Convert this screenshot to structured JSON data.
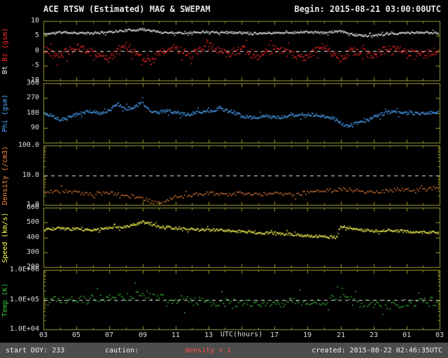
{
  "header": {
    "title": "ACE RTSW (Estimated) MAG & SWEPAM",
    "begin": "Begin: 2015-08-21 03:00:00UTC"
  },
  "footer": {
    "start_doy": "start DOY: 233",
    "caution_label": "caution:",
    "caution_value": "density < 1",
    "created": "created: 2015-08-22 02:46:35UTC"
  },
  "colors": {
    "background": "#000000",
    "frame": "#9a9a2e",
    "tick_text": "#dcdcdc",
    "reference_line": "#e8e8e8",
    "footer_bg": "#4d4d4d",
    "footer_text": "#f0f0f0",
    "caution": "#ff5050",
    "bt": "#f0f0f0",
    "bz": "#ff2a2a",
    "phi": "#4fa8ff",
    "density": "#ff8c3c",
    "speed": "#ffff55",
    "temp": "#3ec93e"
  },
  "chart_data": {
    "type": "scatter",
    "title": "ACE RTSW (Estimated) MAG & SWEPAM",
    "begin_time": "2015-08-21 03:00:00UTC",
    "created_time": "2015-08-22 02:46:35UTC",
    "start_doy": 233,
    "xlabel": "UTC(hours)",
    "x_range_hours": [
      3,
      27
    ],
    "x_ticks": [
      {
        "h": 3,
        "label": "03"
      },
      {
        "h": 5,
        "label": "05"
      },
      {
        "h": 7,
        "label": "07"
      },
      {
        "h": 9,
        "label": "09"
      },
      {
        "h": 11,
        "label": "11"
      },
      {
        "h": 13,
        "label": "13"
      },
      {
        "h": 15,
        "label": "15"
      },
      {
        "h": 17,
        "label": "17"
      },
      {
        "h": 19,
        "label": "19"
      },
      {
        "h": 21,
        "label": "21"
      },
      {
        "h": 23,
        "label": "23"
      },
      {
        "h": 25,
        "label": "01"
      },
      {
        "h": 27,
        "label": "03"
      }
    ],
    "panels": [
      {
        "name": "mag",
        "ylabel_parts": [
          {
            "text": "Bt ",
            "color": "#f0f0f0"
          },
          {
            "text": "Bz (gsm)",
            "color": "#ff2a2a"
          }
        ],
        "scale": "linear",
        "ylim": [
          -10,
          10
        ],
        "yticks": [
          {
            "v": 10,
            "label": "10"
          },
          {
            "v": 5,
            "label": "5"
          },
          {
            "v": 0,
            "label": "0"
          },
          {
            "v": -5,
            "label": "-5"
          },
          {
            "v": -10,
            "label": "-10"
          }
        ],
        "reference_lines": [
          0
        ],
        "series": [
          {
            "name": "Bt",
            "unit": "nT",
            "color": "#f0f0f0",
            "jitter": 0.35,
            "x": [
              3,
              4,
              5,
              6,
              7,
              8,
              9,
              9.5,
              10,
              11,
              12,
              13,
              14,
              15,
              16,
              17,
              18,
              19,
              20,
              21,
              21.5,
              22,
              23,
              24,
              25,
              26,
              27
            ],
            "y": [
              5.5,
              6.2,
              6.0,
              5.8,
              6.3,
              6.8,
              7.2,
              6.8,
              6.2,
              6.0,
              6.1,
              6.4,
              6.2,
              6.0,
              5.9,
              6.0,
              6.1,
              6.3,
              6.0,
              6.5,
              5.8,
              5.2,
              5.0,
              5.6,
              6.0,
              6.1,
              6.0
            ]
          },
          {
            "name": "Bz",
            "unit": "nT",
            "color": "#ff2a2a",
            "jitter": 1.4,
            "x": [
              3,
              4,
              5,
              6,
              7,
              8,
              9,
              9.5,
              10,
              11,
              12,
              13,
              14,
              15,
              16,
              17,
              18,
              19,
              20,
              21,
              21.5,
              22,
              23,
              24,
              25,
              26,
              27
            ],
            "y": [
              0.5,
              -1.5,
              1.0,
              -0.5,
              -2.5,
              1.5,
              -2.0,
              -3.5,
              -1.0,
              1.0,
              -1.5,
              2.0,
              -1.0,
              0.5,
              -2.5,
              1.0,
              -1.5,
              -2.0,
              1.5,
              -2.5,
              -0.5,
              0.0,
              -1.5,
              1.0,
              -0.5,
              -1.5,
              0.0
            ]
          }
        ]
      },
      {
        "name": "phi",
        "ylabel_parts": [
          {
            "text": "Phi (gsm)",
            "color": "#4fa8ff"
          }
        ],
        "scale": "linear",
        "ylim": [
          0,
          360
        ],
        "yticks": [
          {
            "v": 360,
            "label": "360"
          },
          {
            "v": 270,
            "label": "270"
          },
          {
            "v": 180,
            "label": "180"
          },
          {
            "v": 90,
            "label": "90"
          }
        ],
        "reference_lines": [],
        "series": [
          {
            "name": "Phi",
            "unit": "deg",
            "color": "#4fa8ff",
            "jitter": 10,
            "x": [
              3,
              3.5,
              4,
              4.5,
              5,
              5.5,
              6,
              6.5,
              7,
              7.5,
              8,
              8.5,
              9,
              9.3,
              9.6,
              10,
              10.5,
              11,
              11.5,
              12,
              12.5,
              13,
              13.5,
              14,
              14.5,
              15,
              15.5,
              16,
              16.5,
              17,
              17.5,
              18,
              18.5,
              19,
              19.5,
              20,
              20.5,
              21,
              21.3,
              21.7,
              22,
              22.5,
              23,
              23.5,
              24,
              25,
              26,
              27
            ],
            "y": [
              180,
              165,
              140,
              150,
              172,
              185,
              188,
              175,
              195,
              235,
              205,
              215,
              245,
              210,
              190,
              185,
              195,
              182,
              172,
              176,
              186,
              192,
              202,
              196,
              186,
              162,
              152,
              156,
              162,
              152,
              156,
              162,
              166,
              172,
              166,
              160,
              150,
              122,
              100,
              108,
              118,
              132,
              152,
              172,
              186,
              180,
              178,
              188
            ]
          }
        ]
      },
      {
        "name": "density",
        "ylabel_parts": [
          {
            "text": "Density (/cm3)",
            "color": "#ff8c3c"
          }
        ],
        "scale": "log",
        "ylim": [
          1,
          100
        ],
        "yticks": [
          {
            "v": 100,
            "label": "100.0"
          },
          {
            "v": 10,
            "label": "10.0"
          },
          {
            "v": 1,
            "label": "1.0"
          }
        ],
        "reference_lines": [
          10
        ],
        "series": [
          {
            "name": "Density",
            "unit": "/cm3",
            "color": "#ff8c3c",
            "jitter": 0.06,
            "x": [
              3,
              4,
              5,
              6,
              7,
              8,
              9,
              9.5,
              10,
              10.5,
              11,
              12,
              13,
              14,
              15,
              16,
              17,
              18,
              19,
              20,
              21,
              22,
              23,
              24,
              25,
              26,
              27
            ],
            "y": [
              2.5,
              3.0,
              2.6,
              2.2,
              2.6,
              2.1,
              1.7,
              1.3,
              1.1,
              1.4,
              1.8,
              2.1,
              2.5,
              2.1,
              2.5,
              2.2,
              2.6,
              2.2,
              2.6,
              3.0,
              3.4,
              3.0,
              2.6,
              3.0,
              3.4,
              3.2,
              4.0
            ]
          }
        ]
      },
      {
        "name": "speed",
        "ylabel_parts": [
          {
            "text": "Speed (km/s)",
            "color": "#ffff55"
          }
        ],
        "scale": "linear",
        "ylim": [
          200,
          600
        ],
        "yticks": [
          {
            "v": 600,
            "label": "600"
          },
          {
            "v": 500,
            "label": "500"
          },
          {
            "v": 400,
            "label": "400"
          },
          {
            "v": 300,
            "label": "300"
          },
          {
            "v": 200,
            "label": "200"
          }
        ],
        "reference_lines": [],
        "series": [
          {
            "name": "Speed",
            "unit": "km/s",
            "color": "#ffff55",
            "jitter": 9,
            "x": [
              3,
              4,
              5,
              6,
              7,
              8,
              8.5,
              9,
              9.5,
              10,
              11,
              12,
              13,
              14,
              15,
              16,
              17,
              18,
              19,
              20,
              20.7,
              21,
              21.5,
              22,
              23,
              24,
              25,
              26,
              27
            ],
            "y": [
              452,
              460,
              455,
              450,
              462,
              472,
              485,
              502,
              492,
              472,
              462,
              456,
              450,
              446,
              440,
              432,
              426,
              420,
              412,
              405,
              400,
              472,
              466,
              452,
              442,
              446,
              440,
              436,
              430
            ]
          }
        ]
      },
      {
        "name": "temp",
        "ylabel_parts": [
          {
            "text": "Temp (K)",
            "color": "#3ec93e"
          }
        ],
        "scale": "log",
        "ylim": [
          10000,
          1000000
        ],
        "yticks": [
          {
            "v": 1000000,
            "label": "1.0E+06"
          },
          {
            "v": 100000,
            "label": "1.0E+05"
          },
          {
            "v": 10000,
            "label": "1.0E+04"
          }
        ],
        "reference_lines": [
          100000
        ],
        "series": [
          {
            "name": "Temp",
            "unit": "K",
            "color": "#3ec93e",
            "jitter": 0.15,
            "x": [
              3,
              4,
              5,
              6,
              7,
              8,
              9,
              10,
              11,
              12,
              13,
              14,
              15,
              16,
              17,
              18,
              19,
              20,
              21,
              22,
              23,
              24,
              25,
              26,
              27
            ],
            "y": [
              90000,
              100000,
              110000,
              100000,
              120000,
              130000,
              150000,
              110000,
              100000,
              90000,
              85000,
              80000,
              75000,
              70000,
              75000,
              80000,
              85000,
              90000,
              120000,
              80000,
              70000,
              70000,
              75000,
              80000,
              90000
            ]
          }
        ]
      }
    ]
  }
}
